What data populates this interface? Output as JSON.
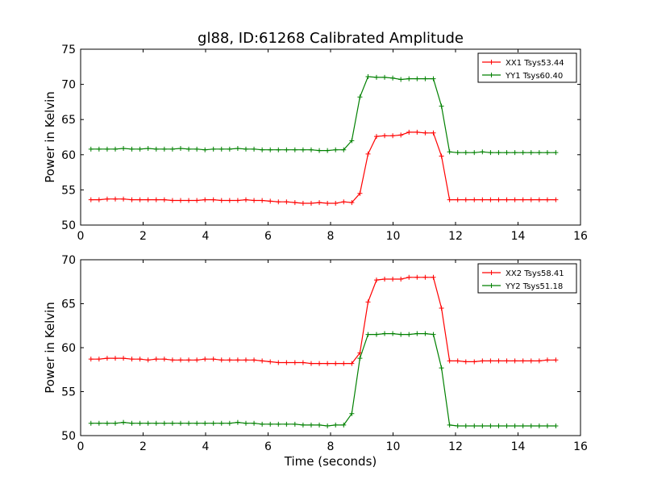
{
  "figure": {
    "title": "gl88, ID:61268 Calibrated Amplitude"
  },
  "chart_data": [
    {
      "type": "line",
      "title": "gl88, ID:61268 Calibrated Amplitude",
      "xlabel": "",
      "ylabel": "Power in Kelvin",
      "xlim": [
        0,
        16
      ],
      "ylim": [
        50,
        75
      ],
      "xticks": [
        0,
        2,
        4,
        6,
        8,
        10,
        12,
        14,
        16
      ],
      "yticks": [
        50,
        55,
        60,
        65,
        70,
        75
      ],
      "grid": false,
      "legend_position": "top-right",
      "x": [
        0.33,
        0.59,
        0.85,
        1.11,
        1.37,
        1.64,
        1.9,
        2.16,
        2.42,
        2.68,
        2.94,
        3.2,
        3.46,
        3.72,
        3.98,
        4.25,
        4.51,
        4.77,
        5.03,
        5.29,
        5.55,
        5.81,
        6.07,
        6.33,
        6.59,
        6.86,
        7.12,
        7.38,
        7.64,
        7.9,
        8.16,
        8.42,
        8.68,
        8.94,
        9.2,
        9.47,
        9.73,
        9.99,
        10.25,
        10.51,
        10.77,
        11.03,
        11.29,
        11.55,
        11.81,
        12.07,
        12.33,
        12.6,
        12.86,
        13.12,
        13.38,
        13.64,
        13.9,
        14.16,
        14.42,
        14.68,
        14.94,
        15.21
      ],
      "series": [
        {
          "name": "XX1 Tsys53.44",
          "color": "#ff0000",
          "values": [
            53.6,
            53.6,
            53.7,
            53.7,
            53.7,
            53.6,
            53.6,
            53.6,
            53.6,
            53.6,
            53.5,
            53.5,
            53.5,
            53.5,
            53.6,
            53.6,
            53.5,
            53.5,
            53.5,
            53.6,
            53.5,
            53.5,
            53.4,
            53.3,
            53.3,
            53.2,
            53.1,
            53.1,
            53.2,
            53.1,
            53.1,
            53.3,
            53.2,
            54.5,
            60.1,
            62.6,
            62.7,
            62.7,
            62.8,
            63.2,
            63.2,
            63.1,
            63.1,
            59.8,
            53.6,
            53.6,
            53.6,
            53.6,
            53.6,
            53.6,
            53.6,
            53.6,
            53.6,
            53.6,
            53.6,
            53.6,
            53.6,
            53.6
          ]
        },
        {
          "name": "YY1 Tsys60.40",
          "color": "#008000",
          "values": [
            60.8,
            60.8,
            60.8,
            60.8,
            60.9,
            60.8,
            60.8,
            60.9,
            60.8,
            60.8,
            60.8,
            60.9,
            60.8,
            60.8,
            60.7,
            60.8,
            60.8,
            60.8,
            60.9,
            60.8,
            60.8,
            60.7,
            60.7,
            60.7,
            60.7,
            60.7,
            60.7,
            60.7,
            60.6,
            60.6,
            60.7,
            60.7,
            62.0,
            68.2,
            71.1,
            71.0,
            71.0,
            70.9,
            70.7,
            70.8,
            70.8,
            70.8,
            70.8,
            66.9,
            60.4,
            60.3,
            60.3,
            60.3,
            60.4,
            60.3,
            60.3,
            60.3,
            60.3,
            60.3,
            60.3,
            60.3,
            60.3,
            60.3
          ]
        }
      ]
    },
    {
      "type": "line",
      "title": "",
      "xlabel": "Time (seconds)",
      "ylabel": "Power in Kelvin",
      "xlim": [
        0,
        16
      ],
      "ylim": [
        50,
        70
      ],
      "xticks": [
        0,
        2,
        4,
        6,
        8,
        10,
        12,
        14,
        16
      ],
      "yticks": [
        50,
        55,
        60,
        65,
        70
      ],
      "grid": false,
      "legend_position": "top-right",
      "x": [
        0.33,
        0.59,
        0.85,
        1.11,
        1.37,
        1.64,
        1.9,
        2.16,
        2.42,
        2.68,
        2.94,
        3.2,
        3.46,
        3.72,
        3.98,
        4.25,
        4.51,
        4.77,
        5.03,
        5.29,
        5.55,
        5.81,
        6.07,
        6.33,
        6.59,
        6.86,
        7.12,
        7.38,
        7.64,
        7.9,
        8.16,
        8.42,
        8.68,
        8.94,
        9.2,
        9.47,
        9.73,
        9.99,
        10.25,
        10.51,
        10.77,
        11.03,
        11.29,
        11.55,
        11.81,
        12.07,
        12.33,
        12.6,
        12.86,
        13.12,
        13.38,
        13.64,
        13.9,
        14.16,
        14.42,
        14.68,
        14.94,
        15.21
      ],
      "series": [
        {
          "name": "XX2 Tsys58.41",
          "color": "#ff0000",
          "values": [
            58.7,
            58.7,
            58.8,
            58.8,
            58.8,
            58.7,
            58.7,
            58.6,
            58.7,
            58.7,
            58.6,
            58.6,
            58.6,
            58.6,
            58.7,
            58.7,
            58.6,
            58.6,
            58.6,
            58.6,
            58.6,
            58.5,
            58.4,
            58.3,
            58.3,
            58.3,
            58.3,
            58.2,
            58.2,
            58.2,
            58.2,
            58.2,
            58.2,
            59.4,
            65.2,
            67.7,
            67.8,
            67.8,
            67.8,
            68.0,
            68.0,
            68.0,
            68.0,
            64.5,
            58.5,
            58.5,
            58.4,
            58.4,
            58.5,
            58.5,
            58.5,
            58.5,
            58.5,
            58.5,
            58.5,
            58.5,
            58.6,
            58.6
          ]
        },
        {
          "name": "YY2 Tsys51.18",
          "color": "#008000",
          "values": [
            51.4,
            51.4,
            51.4,
            51.4,
            51.5,
            51.4,
            51.4,
            51.4,
            51.4,
            51.4,
            51.4,
            51.4,
            51.4,
            51.4,
            51.4,
            51.4,
            51.4,
            51.4,
            51.5,
            51.4,
            51.4,
            51.3,
            51.3,
            51.3,
            51.3,
            51.3,
            51.2,
            51.2,
            51.2,
            51.1,
            51.2,
            51.2,
            52.5,
            58.8,
            61.5,
            61.5,
            61.6,
            61.6,
            61.5,
            61.5,
            61.6,
            61.6,
            61.5,
            57.7,
            51.2,
            51.1,
            51.1,
            51.1,
            51.1,
            51.1,
            51.1,
            51.1,
            51.1,
            51.1,
            51.1,
            51.1,
            51.1,
            51.1
          ]
        }
      ]
    }
  ]
}
